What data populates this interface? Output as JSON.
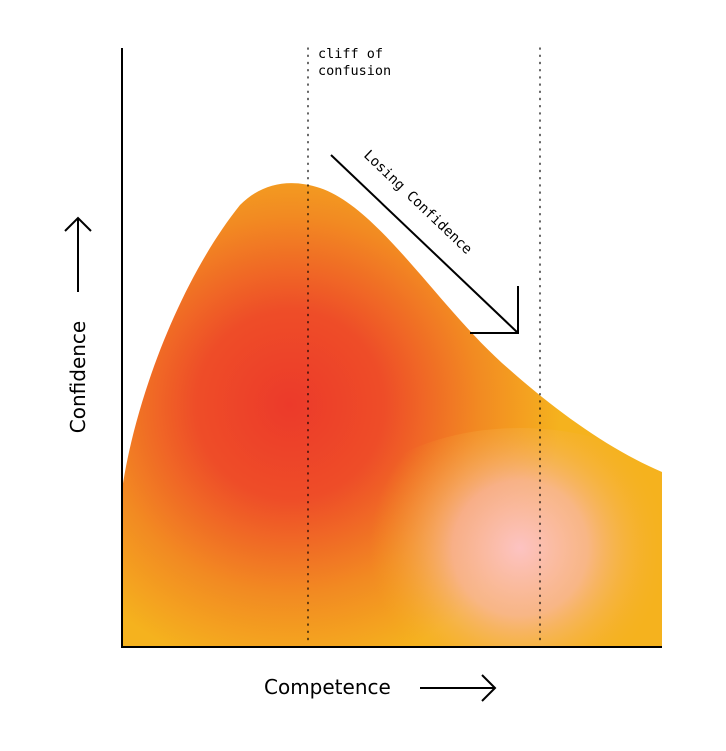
{
  "diagram": {
    "annotation": {
      "line1": "cliff of",
      "line2": "confusion"
    },
    "arrow_label": "Losing Confidence",
    "x_label": "Competence",
    "y_label": "Confidence",
    "colors": {
      "curve_edge": "#F5B21E",
      "curve_hot": "#EC3A2A",
      "curve_mid": "#F07A22",
      "glow": "#FDC3C2",
      "ink": "#000000",
      "background": "#FFFFFF"
    }
  }
}
